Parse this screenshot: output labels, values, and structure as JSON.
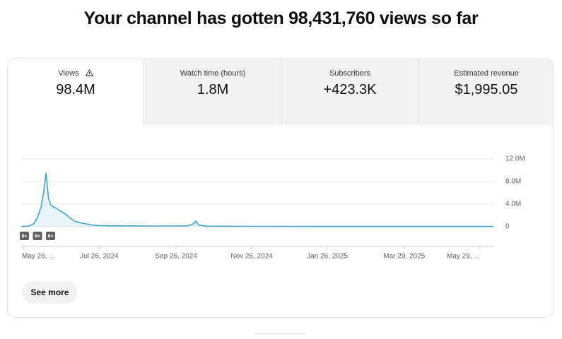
{
  "header": {
    "title": "Your channel has gotten 98,431,760 views so far"
  },
  "tabs": [
    {
      "label": "Views",
      "value": "98.4M"
    },
    {
      "label": "Watch time (hours)",
      "value": "1.8M"
    },
    {
      "label": "Subscribers",
      "value": "+423.3K"
    },
    {
      "label": "Estimated revenue",
      "value": "$1,995.05"
    }
  ],
  "chart_data": {
    "type": "line",
    "x": [
      "2024-05-24",
      "2024-05-30",
      "2024-06-03",
      "2024-06-06",
      "2024-06-09",
      "2024-06-11",
      "2024-06-13",
      "2024-06-15",
      "2024-06-17",
      "2024-06-19",
      "2024-06-21",
      "2024-06-23",
      "2024-06-26",
      "2024-06-29",
      "2024-07-02",
      "2024-07-06",
      "2024-07-10",
      "2024-07-15",
      "2024-07-20",
      "2024-07-26",
      "2024-08-05",
      "2024-08-20",
      "2024-09-05",
      "2024-09-20",
      "2024-10-05",
      "2024-10-10",
      "2024-10-12",
      "2024-10-14",
      "2024-10-20",
      "2024-11-10",
      "2024-12-10",
      "2025-01-15",
      "2025-03-01",
      "2025-04-15",
      "2025-06-09"
    ],
    "series": [
      {
        "name": "Views",
        "color": "#3ea6c7",
        "values": [
          50000,
          100000,
          500000,
          1500000,
          3500000,
          6000000,
          9500000,
          5000000,
          3800000,
          3500000,
          3300000,
          3000000,
          2600000,
          2200000,
          1600000,
          1000000,
          700000,
          500000,
          300000,
          200000,
          150000,
          150000,
          120000,
          120000,
          150000,
          500000,
          1000000,
          300000,
          100000,
          80000,
          60000,
          50000,
          50000,
          50000,
          50000
        ]
      }
    ],
    "xlim": [
      "2024-05-24",
      "2025-06-09"
    ],
    "xticks": [
      {
        "value": "2024-05-26",
        "label": "May 26, ..."
      },
      {
        "value": "2024-07-26",
        "label": "Jul 26, 2024"
      },
      {
        "value": "2024-09-26",
        "label": "Sep 26, 2024"
      },
      {
        "value": "2024-11-26",
        "label": "Nov 26, 2024"
      },
      {
        "value": "2025-01-26",
        "label": "Jan 26, 2025"
      },
      {
        "value": "2025-03-29",
        "label": "Mar 29, 2025"
      },
      {
        "value": "2025-05-29",
        "label": "May 29, ..."
      }
    ],
    "ylim": [
      0,
      12000000
    ],
    "yticks": [
      0,
      {
        "value": 4000000,
        "label": "4.0M"
      },
      {
        "value": 8000000,
        "label": "8.0M"
      },
      {
        "value": 12000000,
        "label": "12.0M"
      }
    ],
    "grid": true,
    "markers": [
      "9+",
      "9+",
      "9+"
    ]
  },
  "button": "See more"
}
